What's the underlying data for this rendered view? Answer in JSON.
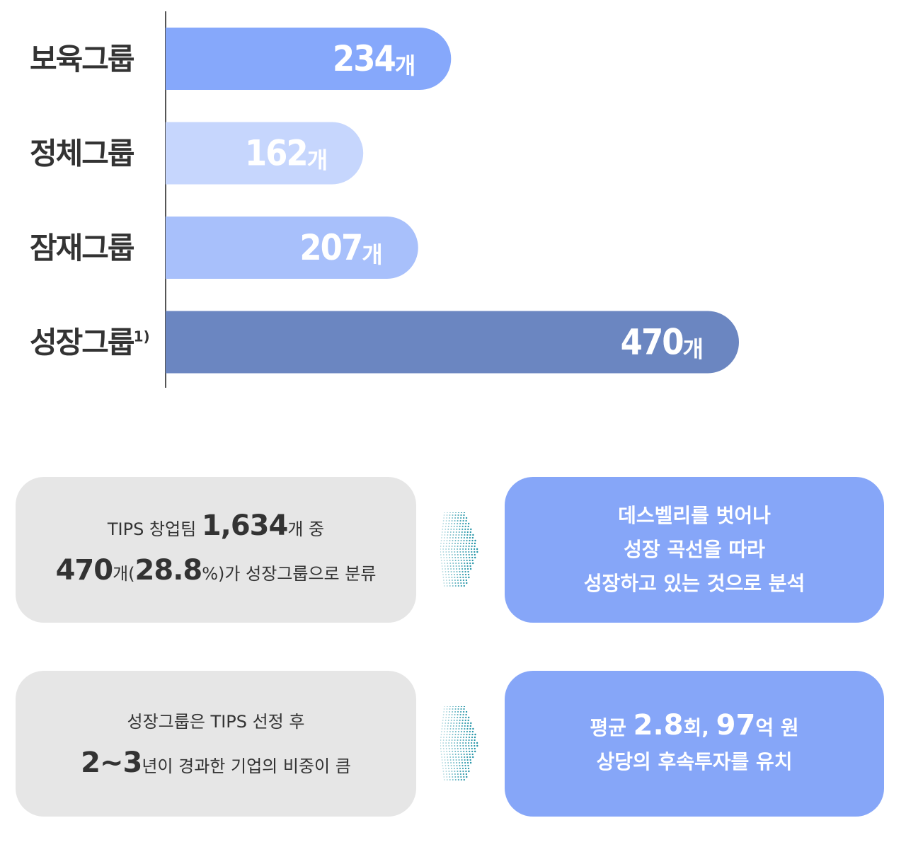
{
  "chart_data": {
    "type": "bar",
    "orientation": "horizontal",
    "categories": [
      "보육그룹",
      "정체그룹",
      "잠재그룹",
      "성장그룹"
    ],
    "category_superscripts": [
      "",
      "",
      "",
      "1)"
    ],
    "values": [
      234,
      162,
      207,
      470
    ],
    "value_unit": "개",
    "bar_colors": [
      "#86a8fb",
      "#c6d6fd",
      "#a8c0fb",
      "#6b86c1"
    ],
    "axis_color": "#555555"
  },
  "summary_rows": [
    {
      "left_lines": [
        {
          "parts": [
            {
              "text": "TIPS 창업팀 ",
              "big": false
            },
            {
              "text": "1,634",
              "big": true
            },
            {
              "text": "개 중",
              "big": false
            }
          ]
        },
        {
          "parts": [
            {
              "text": "470",
              "big": true
            },
            {
              "text": "개(",
              "big": false
            },
            {
              "text": "28.8",
              "big": true
            },
            {
              "text": "%)가 성장그룹으로 분류",
              "big": false
            }
          ]
        }
      ],
      "right_lines": [
        {
          "parts": [
            {
              "text": "데스벨리를 벗어나",
              "big": false
            }
          ]
        },
        {
          "parts": [
            {
              "text": "성장 곡선을 따라",
              "big": false
            }
          ]
        },
        {
          "parts": [
            {
              "text": "성장하고 있는 것으로 분석",
              "big": false
            }
          ]
        }
      ]
    },
    {
      "left_lines": [
        {
          "parts": [
            {
              "text": "성장그룹은 TIPS 선정 후",
              "big": false
            }
          ]
        },
        {
          "parts": [
            {
              "text": "2~3",
              "big": true
            },
            {
              "text": "년이 경과한 기업의 비중이 큼",
              "big": false
            }
          ]
        }
      ],
      "right_lines": [
        {
          "parts": [
            {
              "text": "평균 ",
              "big": false
            },
            {
              "text": "2.8",
              "big": true
            },
            {
              "text": "회, ",
              "big": false
            },
            {
              "text": "97",
              "big": true
            },
            {
              "text": "억 원",
              "big": false
            }
          ]
        },
        {
          "parts": [
            {
              "text": "상당의 후속투자를 유치",
              "big": false
            }
          ]
        }
      ]
    }
  ],
  "colors": {
    "gray_box": "#e6e6e6",
    "blue_box": "#86a6f8",
    "arrow_dots": "#1a8fa3"
  }
}
